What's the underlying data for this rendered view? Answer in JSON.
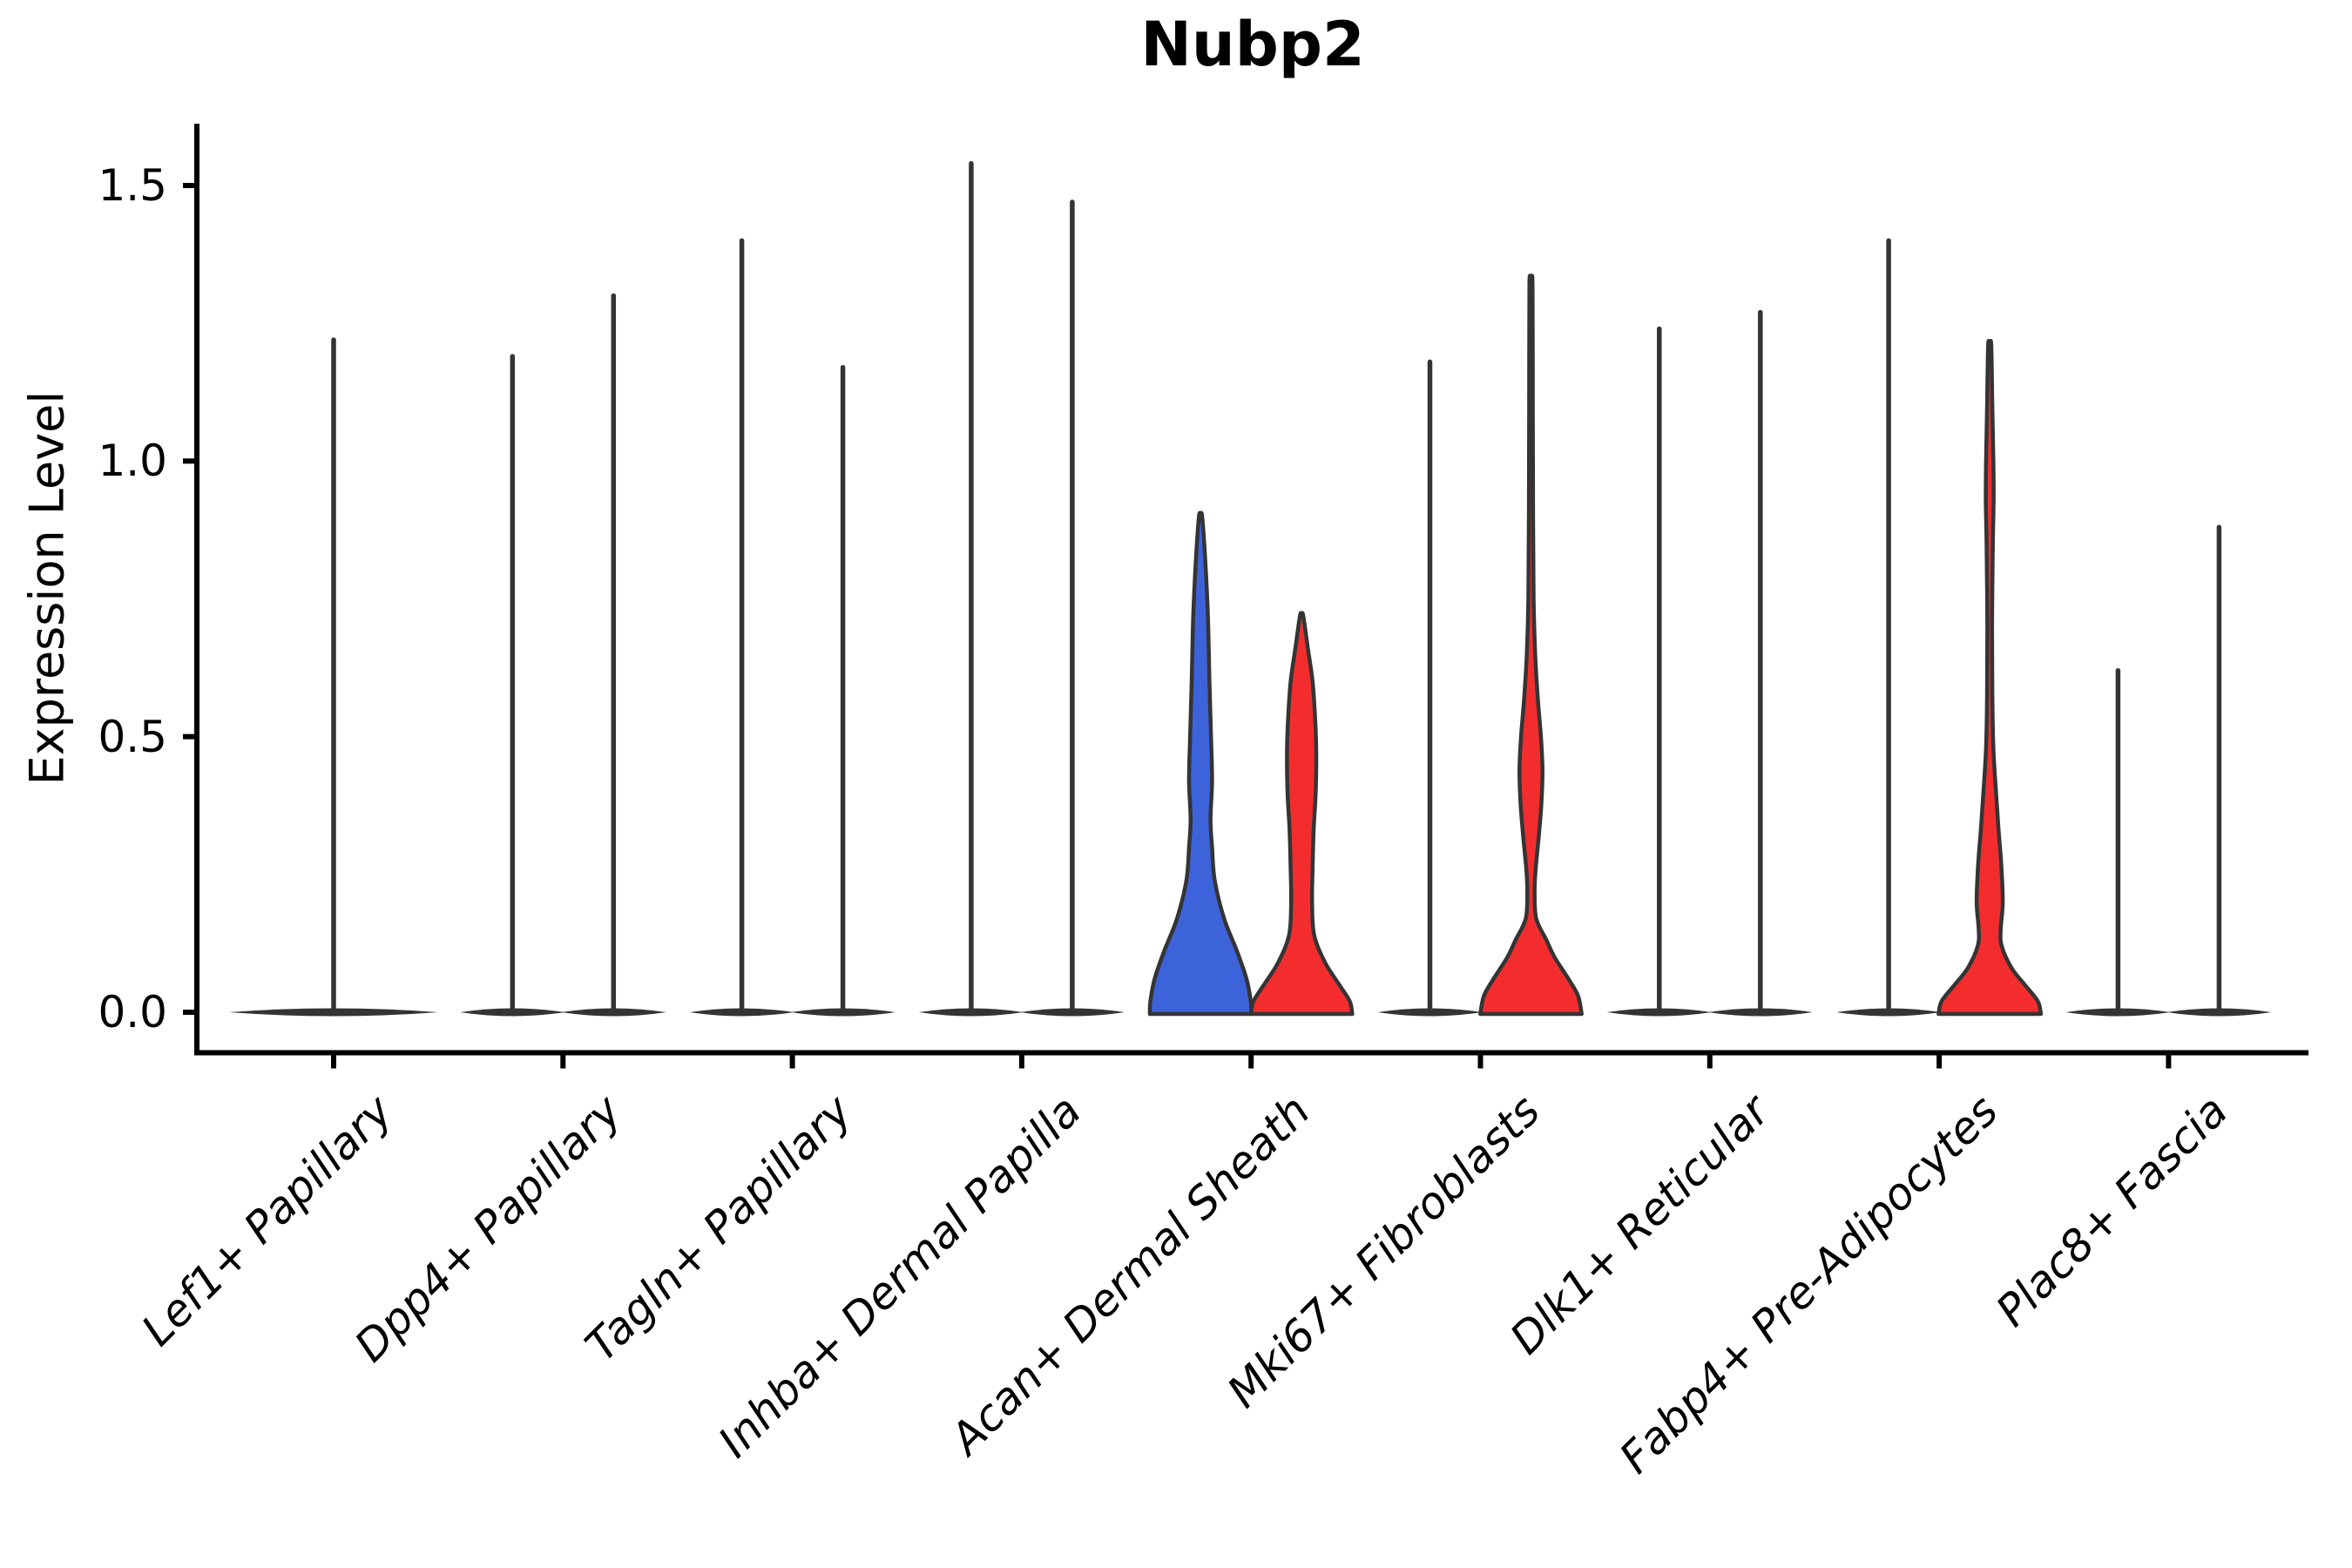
{
  "title": "Nubp2",
  "y_axis": {
    "label": "Expression Level",
    "ticks": [
      "0.0",
      "0.5",
      "1.0",
      "1.5"
    ],
    "tick_values": [
      0,
      0.5,
      1.0,
      1.5
    ]
  },
  "x_axis": {
    "categories": [
      "Lef1+ Papillary",
      "Dpp4+ Papillary",
      "Tagln+ Papillary",
      "Inhba+ Dermal Papilla",
      "Acan+ Dermal Sheath",
      "Mki67+ Fibroblasts",
      "Dlk1+ Reticular",
      "Fabp4+ Pre-Adipocytes",
      "Plac8+ Fascia"
    ]
  },
  "colors": {
    "blue": "#3D63DB",
    "red": "#F32D2D",
    "outline": "#343434",
    "axis": "#000000",
    "background": "#ffffff"
  },
  "chart_data": {
    "type": "violin",
    "title": "Nubp2",
    "ylabel": "Expression Level",
    "ylim": [
      0,
      1.61
    ],
    "yticks": [
      0,
      0.5,
      1.0,
      1.5
    ],
    "grid": false,
    "legend": "none",
    "categories": [
      "Lef1+ Papillary",
      "Dpp4+ Papillary",
      "Tagln+ Papillary",
      "Inhba+ Dermal Papilla",
      "Acan+ Dermal Sheath",
      "Mki67+ Fibroblasts",
      "Dlk1+ Reticular",
      "Fabp4+ Pre-Adipocytes",
      "Plac8+ Fascia"
    ],
    "violins": [
      {
        "category": "Lef1+ Papillary",
        "cat_index": 0,
        "side": "center",
        "span": "full",
        "style": "collapsed",
        "fill": "white",
        "max_expression": 1.22
      },
      {
        "category": "Dpp4+ Papillary",
        "cat_index": 1,
        "side": "left",
        "style": "collapsed",
        "fill": "white",
        "max_expression": 1.19
      },
      {
        "category": "Dpp4+ Papillary",
        "cat_index": 1,
        "side": "right",
        "style": "collapsed",
        "fill": "white",
        "max_expression": 1.3
      },
      {
        "category": "Tagln+ Papillary",
        "cat_index": 2,
        "side": "left",
        "style": "collapsed",
        "fill": "white",
        "max_expression": 1.4
      },
      {
        "category": "Tagln+ Papillary",
        "cat_index": 2,
        "side": "right",
        "style": "collapsed",
        "fill": "white",
        "max_expression": 1.17
      },
      {
        "category": "Inhba+ Dermal Papilla",
        "cat_index": 3,
        "side": "left",
        "style": "collapsed",
        "fill": "white",
        "max_expression": 1.54
      },
      {
        "category": "Inhba+ Dermal Papilla",
        "cat_index": 3,
        "side": "right",
        "style": "collapsed",
        "fill": "white",
        "max_expression": 1.47
      },
      {
        "category": "Acan+ Dermal Sheath",
        "cat_index": 4,
        "side": "left",
        "style": "density",
        "fill": "blue",
        "max_expression": 0.9,
        "profile": [
          [
            0.9,
            0.03
          ],
          [
            0.82,
            0.09
          ],
          [
            0.72,
            0.14
          ],
          [
            0.6,
            0.17
          ],
          [
            0.5,
            0.2
          ],
          [
            0.42,
            0.22
          ],
          [
            0.35,
            0.19
          ],
          [
            0.3,
            0.22
          ],
          [
            0.24,
            0.27
          ],
          [
            0.17,
            0.45
          ],
          [
            0.11,
            0.7
          ],
          [
            0.06,
            0.88
          ],
          [
            0.02,
            0.96
          ],
          [
            0.0,
            0.97
          ]
        ]
      },
      {
        "category": "Acan+ Dermal Sheath",
        "cat_index": 4,
        "side": "right",
        "style": "density",
        "fill": "red",
        "max_expression": 0.72,
        "profile": [
          [
            0.72,
            0.03
          ],
          [
            0.66,
            0.12
          ],
          [
            0.6,
            0.21
          ],
          [
            0.53,
            0.26
          ],
          [
            0.47,
            0.28
          ],
          [
            0.4,
            0.27
          ],
          [
            0.33,
            0.23
          ],
          [
            0.26,
            0.21
          ],
          [
            0.2,
            0.2
          ],
          [
            0.14,
            0.24
          ],
          [
            0.09,
            0.45
          ],
          [
            0.05,
            0.72
          ],
          [
            0.02,
            0.92
          ],
          [
            0.0,
            0.97
          ]
        ]
      },
      {
        "category": "Mki67+ Fibroblasts",
        "cat_index": 5,
        "side": "left",
        "style": "collapsed",
        "fill": "white",
        "max_expression": 1.18
      },
      {
        "category": "Mki67+ Fibroblasts",
        "cat_index": 5,
        "side": "right",
        "style": "density",
        "fill": "red",
        "max_expression": 1.32,
        "profile": [
          [
            1.32,
            0.03
          ],
          [
            1.1,
            0.035
          ],
          [
            0.9,
            0.04
          ],
          [
            0.75,
            0.05
          ],
          [
            0.65,
            0.08
          ],
          [
            0.57,
            0.13
          ],
          [
            0.5,
            0.19
          ],
          [
            0.44,
            0.22
          ],
          [
            0.38,
            0.2
          ],
          [
            0.32,
            0.15
          ],
          [
            0.26,
            0.09
          ],
          [
            0.22,
            0.07
          ],
          [
            0.17,
            0.1
          ],
          [
            0.13,
            0.3
          ],
          [
            0.1,
            0.45
          ],
          [
            0.06,
            0.72
          ],
          [
            0.03,
            0.9
          ],
          [
            0.0,
            0.97
          ]
        ]
      },
      {
        "category": "Dlk1+ Reticular",
        "cat_index": 6,
        "side": "left",
        "style": "collapsed",
        "fill": "white",
        "max_expression": 1.24
      },
      {
        "category": "Dlk1+ Reticular",
        "cat_index": 6,
        "side": "right",
        "style": "collapsed",
        "fill": "white",
        "max_expression": 1.27
      },
      {
        "category": "Fabp4+ Pre-Adipocytes",
        "cat_index": 7,
        "side": "left",
        "style": "collapsed",
        "fill": "white",
        "max_expression": 1.4
      },
      {
        "category": "Fabp4+ Pre-Adipocytes",
        "cat_index": 7,
        "side": "right",
        "style": "density",
        "fill": "red",
        "max_expression": 1.21,
        "profile": [
          [
            1.21,
            0.03
          ],
          [
            1.1,
            0.05
          ],
          [
            1.0,
            0.07
          ],
          [
            0.93,
            0.075
          ],
          [
            0.85,
            0.06
          ],
          [
            0.7,
            0.045
          ],
          [
            0.58,
            0.05
          ],
          [
            0.48,
            0.07
          ],
          [
            0.4,
            0.12
          ],
          [
            0.33,
            0.17
          ],
          [
            0.27,
            0.22
          ],
          [
            0.2,
            0.25
          ],
          [
            0.15,
            0.21
          ],
          [
            0.12,
            0.23
          ],
          [
            0.08,
            0.42
          ],
          [
            0.05,
            0.67
          ],
          [
            0.02,
            0.92
          ],
          [
            0.0,
            0.98
          ]
        ]
      },
      {
        "category": "Plac8+ Fascia",
        "cat_index": 8,
        "side": "left",
        "style": "collapsed",
        "fill": "white",
        "max_expression": 0.62
      },
      {
        "category": "Plac8+ Fascia",
        "cat_index": 8,
        "side": "right",
        "style": "collapsed",
        "fill": "white",
        "max_expression": 0.88
      }
    ]
  }
}
